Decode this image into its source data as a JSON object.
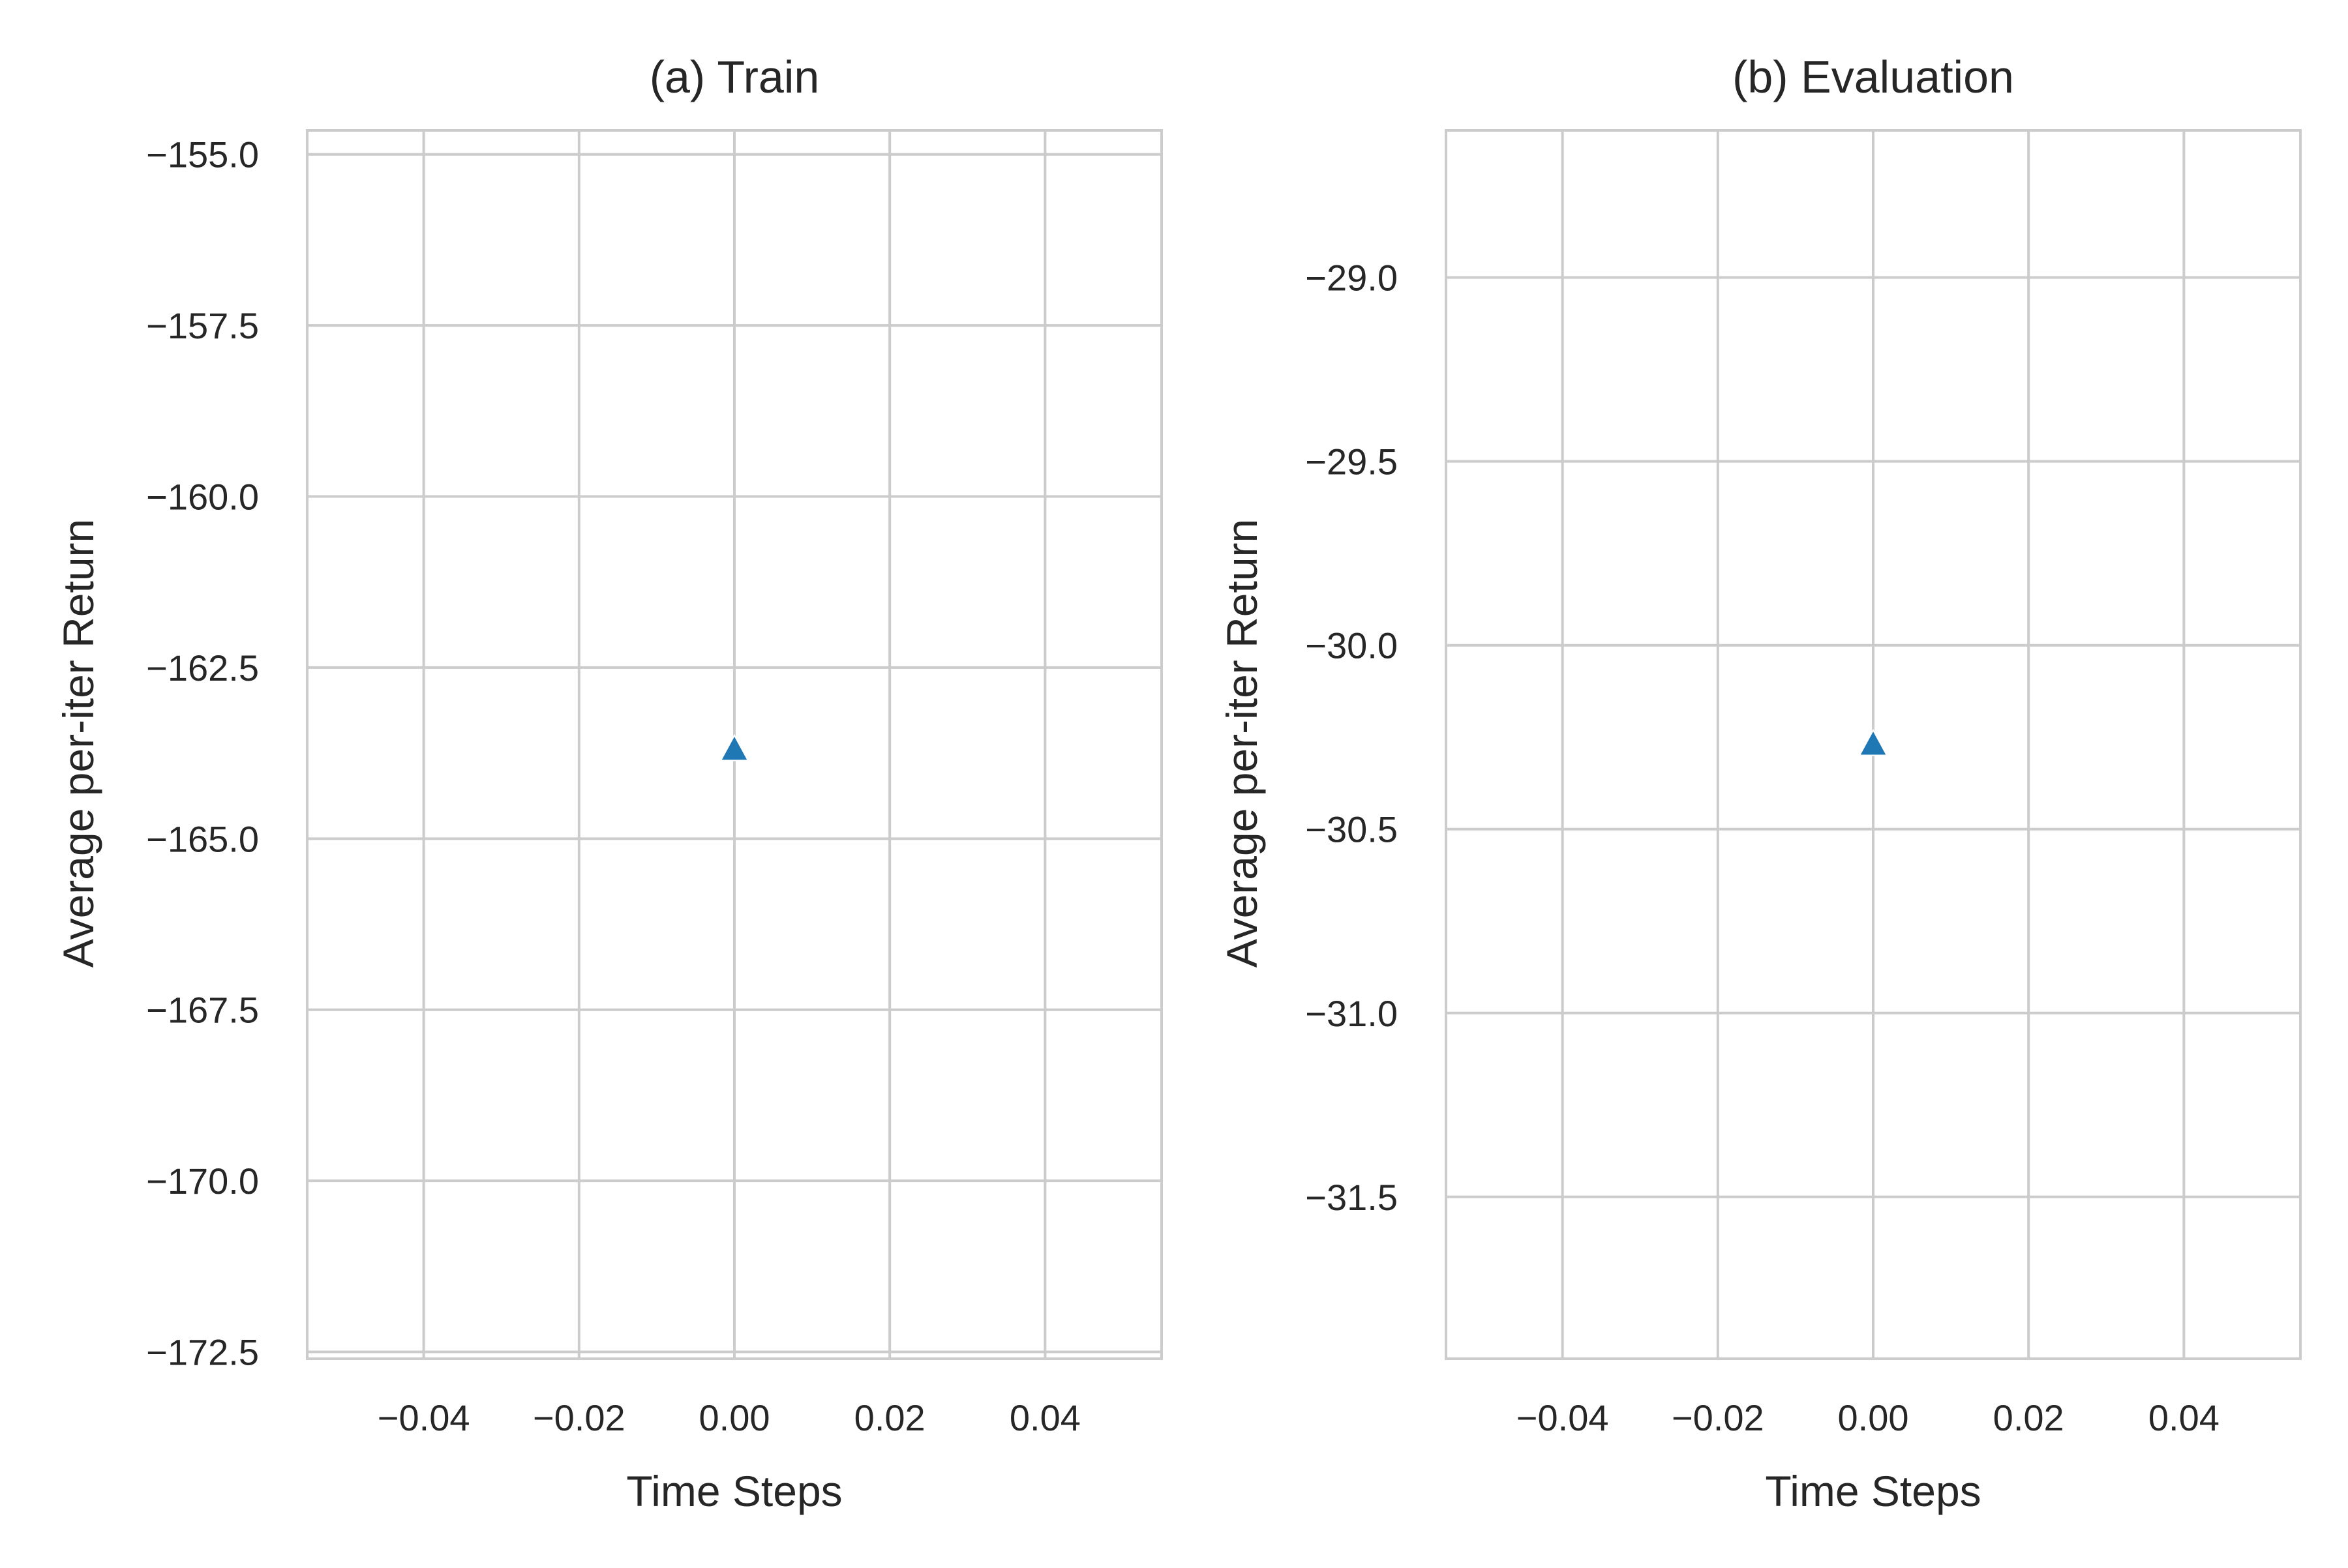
{
  "chart_data": [
    {
      "type": "scatter",
      "title": "(a) Train",
      "xlabel": "Time Steps",
      "ylabel": "Average per-iter Return",
      "xlim": [
        -0.055,
        0.055
      ],
      "ylim": [
        -172.6,
        -154.65
      ],
      "xticks": [
        -0.04,
        -0.02,
        0.0,
        0.02,
        0.04
      ],
      "xtick_labels": [
        "−0.04",
        "−0.02",
        "0.00",
        "0.02",
        "0.04"
      ],
      "yticks": [
        -155.0,
        -157.5,
        -160.0,
        -162.5,
        -165.0,
        -167.5,
        -170.0,
        -172.5
      ],
      "ytick_labels": [
        "−155.0",
        "−157.5",
        "−160.0",
        "−162.5",
        "−165.0",
        "−167.5",
        "−170.0",
        "−172.5"
      ],
      "grid": true,
      "marker": "triangle-up",
      "marker_color": "#1f77b4",
      "points": [
        {
          "x": 0.0,
          "y": -163.7
        }
      ]
    },
    {
      "type": "scatter",
      "title": "(b) Evaluation",
      "xlabel": "Time Steps",
      "ylabel": "Average per-iter Return",
      "xlim": [
        -0.055,
        0.055
      ],
      "ylim": [
        -31.94,
        -28.6
      ],
      "xticks": [
        -0.04,
        -0.02,
        0.0,
        0.02,
        0.04
      ],
      "xtick_labels": [
        "−0.04",
        "−0.02",
        "0.00",
        "0.02",
        "0.04"
      ],
      "yticks": [
        -29.0,
        -29.5,
        -30.0,
        -30.5,
        -31.0,
        -31.5
      ],
      "ytick_labels": [
        "−29.0",
        "−29.5",
        "−30.0",
        "−30.5",
        "−31.0",
        "−31.5"
      ],
      "grid": true,
      "marker": "triangle-up",
      "marker_color": "#1f77b4",
      "points": [
        {
          "x": 0.0,
          "y": -30.27
        }
      ]
    }
  ]
}
